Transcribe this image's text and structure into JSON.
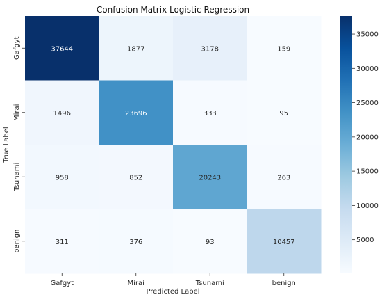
{
  "chart_data": {
    "type": "heatmap",
    "title": "Confusion Matrix Logistic Regression",
    "xlabel": "Predicted Label",
    "ylabel": "True Label",
    "x_categories": [
      "Gafgyt",
      "Mirai",
      "Tsunami",
      "benign"
    ],
    "y_categories": [
      "Gafgyt",
      "Mirai",
      "Tsunami",
      "benign"
    ],
    "matrix": [
      [
        37644,
        1877,
        3178,
        159
      ],
      [
        1496,
        23696,
        333,
        95
      ],
      [
        958,
        852,
        20243,
        263
      ],
      [
        311,
        376,
        93,
        10457
      ]
    ],
    "colormap": "Blues",
    "colorbar": {
      "range": [
        93,
        37644
      ],
      "ticks": [
        5000,
        10000,
        15000,
        20000,
        25000,
        30000,
        35000
      ],
      "tick_labels": [
        "5000",
        "10000",
        "15000",
        "20000",
        "25000",
        "30000",
        "35000"
      ]
    }
  }
}
